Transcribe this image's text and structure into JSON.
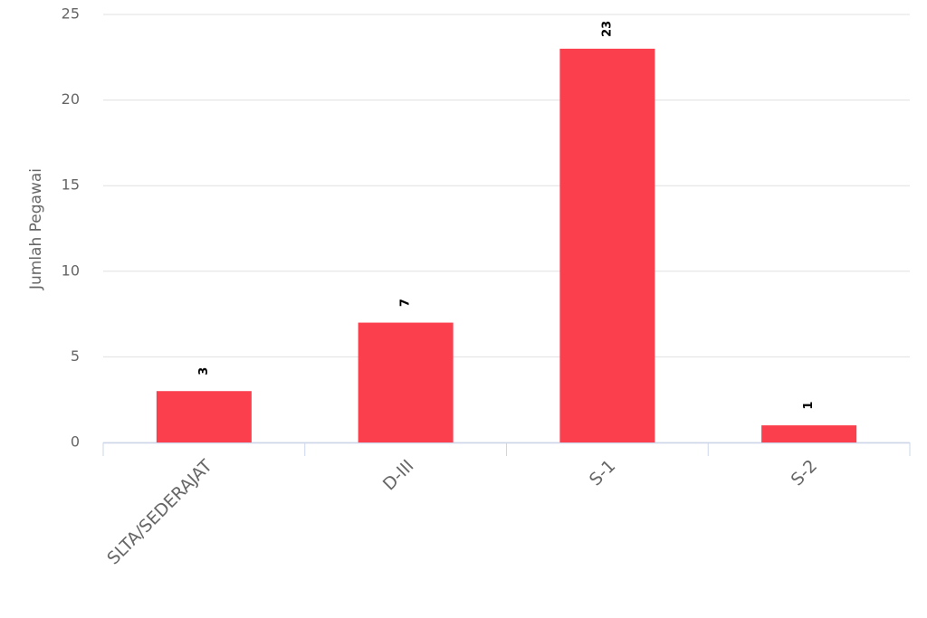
{
  "chart_data": {
    "type": "bar",
    "y_label": "Jumlah Pegawai",
    "categories": [
      "SLTA/SEDERAJAT",
      "D-III",
      "S-1",
      "S-2"
    ],
    "values": [
      3,
      7,
      23,
      1
    ],
    "color": "#fc3f4d",
    "ylim": [
      0,
      25
    ],
    "yticks": [
      0,
      5,
      10,
      15,
      20,
      25
    ],
    "grid": true
  }
}
